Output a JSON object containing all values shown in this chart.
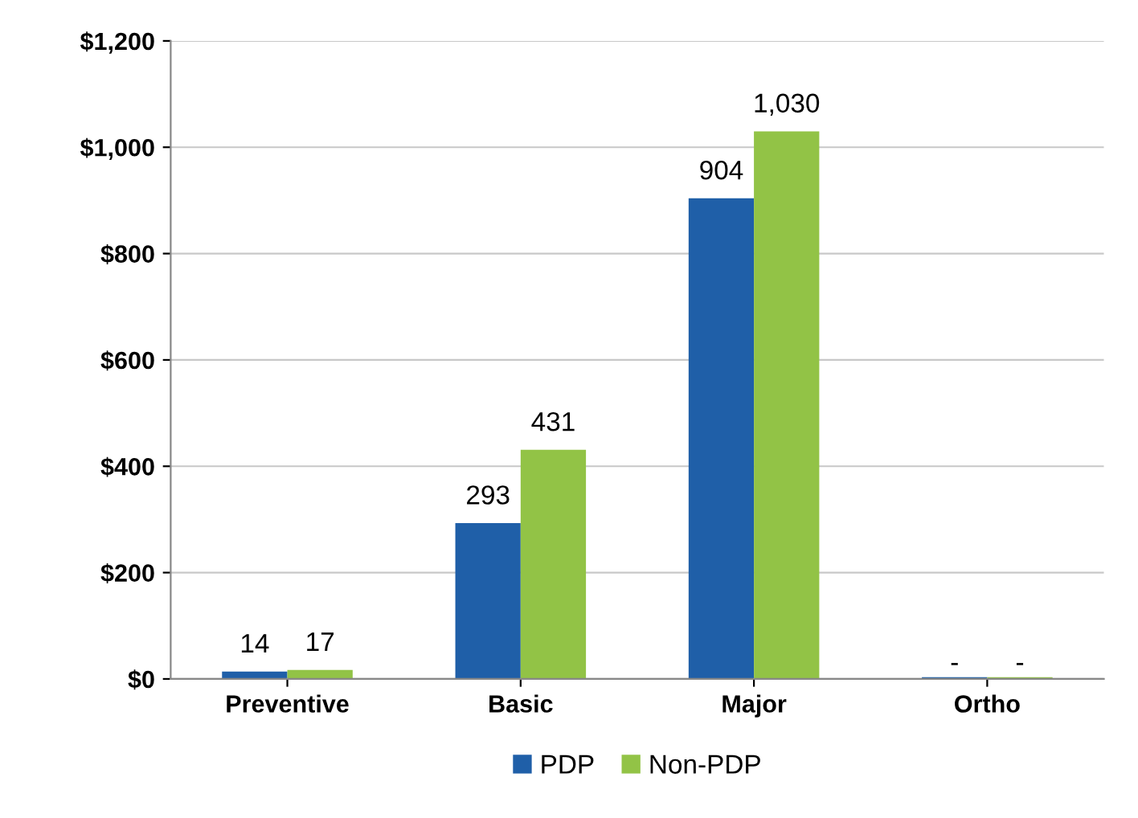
{
  "chart_data": {
    "type": "bar",
    "categories": [
      "Preventive",
      "Basic",
      "Major",
      "Ortho"
    ],
    "series": [
      {
        "name": "PDP",
        "color": "#1f5fa8",
        "values": [
          14,
          293,
          904,
          0
        ],
        "value_labels": [
          "14",
          "293",
          "904",
          "-"
        ]
      },
      {
        "name": "Non-PDP",
        "color": "#92c346",
        "values": [
          17,
          431,
          1030,
          0
        ],
        "value_labels": [
          "17",
          "431",
          "1,030",
          "-"
        ]
      }
    ],
    "ylim": [
      0,
      1200
    ],
    "yticks": [
      {
        "value": 0,
        "label": "$0"
      },
      {
        "value": 200,
        "label": "$200"
      },
      {
        "value": 400,
        "label": "$400"
      },
      {
        "value": 600,
        "label": "$600"
      },
      {
        "value": 800,
        "label": "$800"
      },
      {
        "value": 1000,
        "label": "$1,000"
      },
      {
        "value": 1200,
        "label": "$1,200"
      }
    ],
    "grid": "y",
    "legend": "bottom"
  }
}
